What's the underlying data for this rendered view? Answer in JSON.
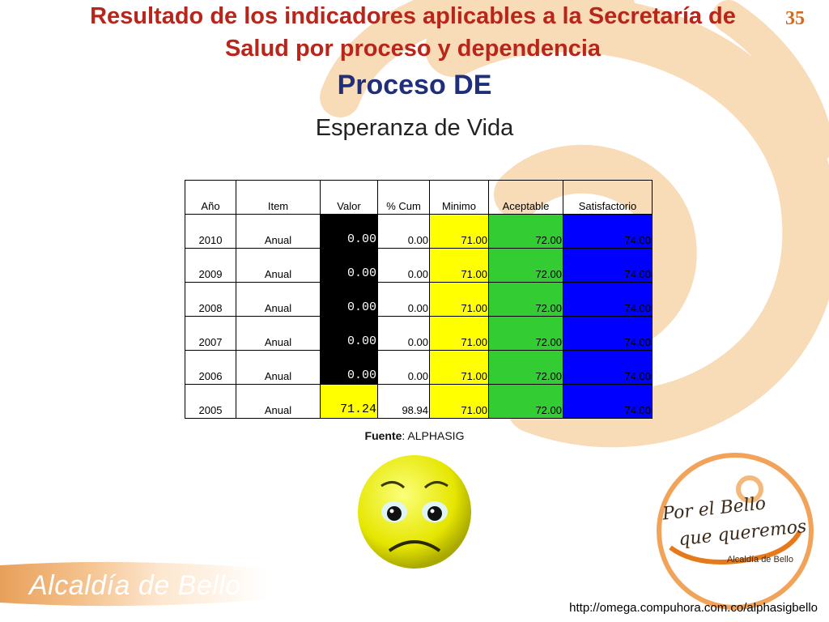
{
  "slide": {
    "title_line1": "Resultado de los indicadores aplicables a la Secretaría de",
    "title_line2": "Salud  por proceso y dependencia",
    "number": "35",
    "process_title": "Proceso DE",
    "subtitle": "Esperanza de Vida"
  },
  "table": {
    "headers": [
      "Año",
      "Item",
      "Valor",
      "% Cum",
      "Minimo",
      "Aceptable",
      "Satisfactorio"
    ],
    "rows": [
      {
        "year": "2010",
        "item": "Anual",
        "valor": "0.00",
        "cum": "0.00",
        "min": "71.00",
        "acc": "72.00",
        "sat": "74.00",
        "status": "black"
      },
      {
        "year": "2009",
        "item": "Anual",
        "valor": "0.00",
        "cum": "0.00",
        "min": "71.00",
        "acc": "72.00",
        "sat": "74.00",
        "status": "black"
      },
      {
        "year": "2008",
        "item": "Anual",
        "valor": "0.00",
        "cum": "0.00",
        "min": "71.00",
        "acc": "72.00",
        "sat": "74.00",
        "status": "black"
      },
      {
        "year": "2007",
        "item": "Anual",
        "valor": "0.00",
        "cum": "0.00",
        "min": "71.00",
        "acc": "72.00",
        "sat": "74.00",
        "status": "black"
      },
      {
        "year": "2006",
        "item": "Anual",
        "valor": "0.00",
        "cum": "0.00",
        "min": "71.00",
        "acc": "72.00",
        "sat": "74.00",
        "status": "black"
      },
      {
        "year": "2005",
        "item": "Anual",
        "valor": "71.24",
        "cum": "98.94",
        "min": "71.00",
        "acc": "72.00",
        "sat": "74.00",
        "status": "yellow"
      }
    ]
  },
  "source": {
    "label": "Fuente",
    "value": ": ALPHASIG"
  },
  "footer": {
    "brand": "Alcaldía de Bello",
    "url": "http://omega.compuhora.com.co/alphasigbello"
  },
  "logo": {
    "line1": "Por el Bello",
    "line2": "que queremos",
    "line3": "Alcaldía de Bello"
  },
  "icons": [
    "sad-face-icon",
    "background-swirl",
    "logo-swirl-icon"
  ],
  "colors": {
    "title": "#b8251a",
    "process_title": "#1f2f7a",
    "minimo": "#ffff00",
    "aceptable": "#33cc33",
    "satisfactorio": "#0000ff",
    "valor_bad": "#000000",
    "valor_warn": "#ffff00",
    "swirl": "#f5c48a"
  }
}
